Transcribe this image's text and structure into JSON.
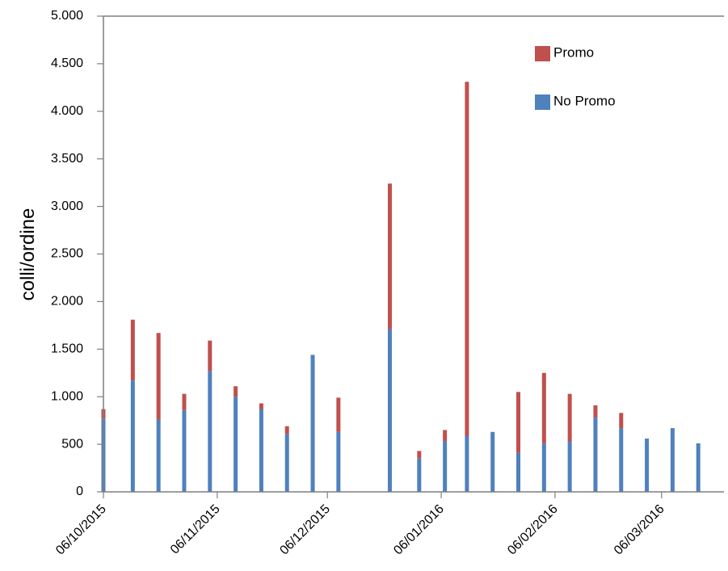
{
  "chart_data": {
    "type": "bar",
    "stacked": true,
    "title": "",
    "xlabel": "",
    "ylabel": "colli/ordine",
    "ylim": [
      0,
      5000
    ],
    "yticks": [
      0,
      500,
      1000,
      1500,
      2000,
      2500,
      3000,
      3500,
      4000,
      4500,
      5000
    ],
    "ytick_labels": [
      "0",
      "500",
      "1.000",
      "1.500",
      "2.000",
      "2.500",
      "3.000",
      "3.500",
      "4.000",
      "4.500",
      "5.000"
    ],
    "xlim": [
      "2015-10-06",
      "2016-03-23"
    ],
    "xticks": [
      "2015-10-06",
      "2015-11-06",
      "2015-12-06",
      "2016-01-06",
      "2016-02-06",
      "2016-03-06"
    ],
    "xtick_labels": [
      "06/10/2015",
      "06/11/2015",
      "06/12/2015",
      "06/01/2016",
      "06/02/2016",
      "06/03/2016"
    ],
    "legend_position": "top-right",
    "grid": false,
    "x": [
      "2015-10-06",
      "2015-10-14",
      "2015-10-21",
      "2015-10-28",
      "2015-11-04",
      "2015-11-11",
      "2015-11-18",
      "2015-11-25",
      "2015-12-02",
      "2015-12-09",
      "2015-12-23",
      "2015-12-31",
      "2016-01-07",
      "2016-01-13",
      "2016-01-20",
      "2016-01-27",
      "2016-02-03",
      "2016-02-10",
      "2016-02-17",
      "2016-02-24",
      "2016-03-02",
      "2016-03-09",
      "2016-03-16"
    ],
    "series": [
      {
        "name": "No Promo",
        "color": "#4f81bd",
        "values": [
          770,
          1170,
          760,
          860,
          1270,
          1000,
          870,
          610,
          1440,
          630,
          1710,
          350,
          530,
          590,
          630,
          410,
          510,
          530,
          780,
          670,
          560,
          670,
          510
        ]
      },
      {
        "name": "Promo",
        "color": "#c0504d",
        "values": [
          100,
          640,
          910,
          170,
          320,
          110,
          60,
          80,
          0,
          360,
          1530,
          80,
          120,
          3720,
          0,
          640,
          740,
          500,
          130,
          160,
          0,
          0,
          0
        ]
      }
    ]
  }
}
